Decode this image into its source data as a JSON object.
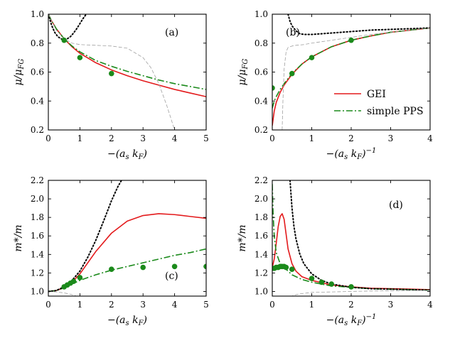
{
  "colors": {
    "gei": "#e31a1c",
    "pps": "#1b8a1b",
    "markers": "#1b8a1b",
    "dotted": "#000000",
    "thin": "#a0a0a0"
  },
  "legend": {
    "entries": [
      {
        "label": "GEI",
        "style": "solid",
        "color": "#e31a1c"
      },
      {
        "label": "simple PPS",
        "style": "dashdot",
        "color": "#1b8a1b"
      }
    ],
    "placement": "bottom-right of panel b"
  },
  "chart_data": [
    {
      "panel": "a",
      "panel_label": "(a)",
      "type": "line",
      "xlabel": "−(a_s k_F)",
      "ylabel": "μ/μ_FG",
      "xlim": [
        0,
        5
      ],
      "ylim": [
        0.2,
        1.0
      ],
      "xticks": [
        "0",
        "1",
        "2",
        "3",
        "4",
        "5"
      ],
      "yticks": [
        "0.2",
        "0.4",
        "0.6",
        "0.8",
        "1.0"
      ],
      "series": [
        {
          "role": "gei",
          "style": "solid",
          "x": [
            0,
            0.1,
            0.25,
            0.5,
            0.75,
            1.0,
            1.5,
            2.0,
            2.5,
            3.0,
            3.5,
            4.0,
            4.5,
            5.0
          ],
          "y": [
            1.0,
            0.955,
            0.9,
            0.83,
            0.775,
            0.73,
            0.665,
            0.615,
            0.575,
            0.54,
            0.51,
            0.48,
            0.455,
            0.43
          ]
        },
        {
          "role": "pps",
          "style": "dashdot",
          "x": [
            0,
            0.1,
            0.25,
            0.5,
            0.75,
            1.0,
            1.5,
            2.0,
            2.5,
            3.0,
            3.5,
            4.0,
            4.5,
            5.0
          ],
          "y": [
            1.0,
            0.955,
            0.9,
            0.83,
            0.78,
            0.74,
            0.68,
            0.64,
            0.605,
            0.575,
            0.545,
            0.52,
            0.5,
            0.48
          ]
        },
        {
          "role": "dotted",
          "style": "dotted",
          "x": [
            0,
            0.1,
            0.2,
            0.3,
            0.4,
            0.5,
            0.6,
            0.7,
            0.8,
            0.9,
            1.0,
            1.1,
            1.2,
            1.3,
            1.4
          ],
          "y": [
            1.0,
            0.925,
            0.875,
            0.845,
            0.83,
            0.825,
            0.83,
            0.845,
            0.87,
            0.9,
            0.935,
            0.97,
            1.0,
            1.02,
            1.04
          ]
        },
        {
          "role": "thin",
          "style": "dashed-thin",
          "x": [
            0,
            0.25,
            0.5,
            0.75,
            1.0,
            1.5,
            2.0,
            2.5,
            3.0,
            3.25,
            3.5,
            3.75,
            4.0,
            4.1
          ],
          "y": [
            1.0,
            0.89,
            0.83,
            0.8,
            0.79,
            0.785,
            0.78,
            0.765,
            0.7,
            0.63,
            0.52,
            0.37,
            0.2,
            0.14
          ]
        },
        {
          "role": "markers",
          "style": "points",
          "x": [
            0.5,
            1.0,
            2.0
          ],
          "y": [
            0.82,
            0.7,
            0.59
          ]
        }
      ]
    },
    {
      "panel": "b",
      "panel_label": "(b)",
      "type": "line",
      "xlabel": "−(a_s k_F)⁻¹",
      "ylabel": "μ/μ_FG",
      "xlim": [
        0,
        4
      ],
      "ylim": [
        0.2,
        1.0
      ],
      "xticks": [
        "0",
        "1",
        "2",
        "3",
        "4"
      ],
      "yticks": [
        "0.2",
        "0.4",
        "0.6",
        "0.8",
        "1.0"
      ],
      "series": [
        {
          "role": "gei",
          "style": "solid",
          "x": [
            0,
            0.05,
            0.1,
            0.2,
            0.3,
            0.5,
            0.75,
            1.0,
            1.5,
            2.0,
            2.5,
            3.0,
            3.5,
            4.0
          ],
          "y": [
            0.23,
            0.33,
            0.39,
            0.46,
            0.51,
            0.585,
            0.655,
            0.705,
            0.775,
            0.82,
            0.85,
            0.875,
            0.89,
            0.905
          ]
        },
        {
          "role": "pps",
          "style": "dashdot",
          "x": [
            0,
            0.05,
            0.1,
            0.2,
            0.3,
            0.5,
            0.75,
            1.0,
            1.5,
            2.0,
            2.5,
            3.0,
            3.5,
            4.0
          ],
          "y": [
            0.35,
            0.4,
            0.43,
            0.48,
            0.52,
            0.59,
            0.655,
            0.705,
            0.775,
            0.82,
            0.85,
            0.875,
            0.89,
            0.905
          ]
        },
        {
          "role": "dotted",
          "style": "dotted",
          "x": [
            0.4,
            0.45,
            0.5,
            0.6,
            0.7,
            0.8,
            1.0,
            1.25,
            1.5,
            2.0,
            2.5,
            3.0,
            3.5,
            4.0
          ],
          "y": [
            1.0,
            0.95,
            0.92,
            0.885,
            0.865,
            0.86,
            0.86,
            0.865,
            0.87,
            0.88,
            0.89,
            0.895,
            0.9,
            0.905
          ]
        },
        {
          "role": "thin",
          "style": "dashed-thin",
          "x": [
            0.25,
            0.27,
            0.3,
            0.35,
            0.4,
            0.5,
            0.6,
            0.8,
            1.0,
            1.5,
            2.0,
            2.5,
            3.0,
            3.5,
            4.0
          ],
          "y": [
            0.2,
            0.4,
            0.62,
            0.74,
            0.77,
            0.78,
            0.785,
            0.79,
            0.8,
            0.82,
            0.84,
            0.86,
            0.875,
            0.89,
            0.905
          ]
        },
        {
          "role": "markers",
          "style": "points",
          "x": [
            0,
            0.5,
            1.0,
            2.0
          ],
          "y": [
            0.49,
            0.59,
            0.7,
            0.82
          ]
        }
      ]
    },
    {
      "panel": "c",
      "panel_label": "(c)",
      "type": "line",
      "xlabel": "−(a_s k_F)",
      "ylabel": "m*/m",
      "xlim": [
        0,
        5
      ],
      "ylim": [
        0.95,
        2.2
      ],
      "xticks": [
        "0",
        "1",
        "2",
        "3",
        "4",
        "5"
      ],
      "yticks": [
        "1.0",
        "1.2",
        "1.4",
        "1.6",
        "1.8",
        "2.0",
        "2.2"
      ],
      "series": [
        {
          "role": "gei",
          "style": "solid",
          "x": [
            0,
            0.25,
            0.5,
            0.75,
            1.0,
            1.5,
            2.0,
            2.5,
            3.0,
            3.5,
            4.0,
            4.5,
            5.0
          ],
          "y": [
            1.0,
            1.01,
            1.04,
            1.1,
            1.19,
            1.43,
            1.63,
            1.76,
            1.82,
            1.84,
            1.83,
            1.81,
            1.79
          ]
        },
        {
          "role": "pps",
          "style": "dashdot",
          "x": [
            0,
            0.25,
            0.5,
            0.75,
            1.0,
            1.5,
            2.0,
            2.5,
            3.0,
            3.5,
            4.0,
            4.5,
            5.0
          ],
          "y": [
            1.0,
            1.01,
            1.04,
            1.08,
            1.12,
            1.18,
            1.23,
            1.27,
            1.31,
            1.35,
            1.39,
            1.42,
            1.46
          ]
        },
        {
          "role": "dotted",
          "style": "dotted",
          "x": [
            0,
            0.25,
            0.5,
            0.75,
            1.0,
            1.25,
            1.5,
            1.75,
            2.0,
            2.2,
            2.35
          ],
          "y": [
            1.0,
            1.01,
            1.05,
            1.12,
            1.22,
            1.37,
            1.55,
            1.76,
            1.98,
            2.13,
            2.22
          ]
        },
        {
          "role": "thin",
          "style": "dashed-thin",
          "x": [
            0,
            0.25,
            0.5,
            0.7,
            0.85,
            1.0,
            1.1
          ],
          "y": [
            1.0,
            0.995,
            0.985,
            0.97,
            0.955,
            0.93,
            0.9
          ]
        },
        {
          "role": "markers",
          "style": "points",
          "x": [
            0.5,
            0.6,
            0.7,
            0.8,
            1.0,
            2.0,
            3.0,
            4.0,
            5.0
          ],
          "y": [
            1.05,
            1.07,
            1.09,
            1.11,
            1.15,
            1.24,
            1.26,
            1.27,
            1.27
          ]
        }
      ]
    },
    {
      "panel": "d",
      "panel_label": "(d)",
      "type": "line",
      "xlabel": "−(a_s k_F)⁻¹",
      "ylabel": "m*/m",
      "xlim": [
        0,
        4
      ],
      "ylim": [
        0.95,
        2.2
      ],
      "xticks": [
        "0",
        "1",
        "2",
        "3",
        "4"
      ],
      "yticks": [
        "1.0",
        "1.2",
        "1.4",
        "1.6",
        "1.8",
        "2.0",
        "2.2"
      ],
      "series": [
        {
          "role": "gei",
          "style": "solid",
          "x": [
            0,
            0.05,
            0.1,
            0.15,
            0.2,
            0.25,
            0.3,
            0.35,
            0.4,
            0.5,
            0.6,
            0.75,
            1.0,
            1.5,
            2.0,
            2.5,
            3.0,
            3.5,
            4.0
          ],
          "y": [
            1.26,
            1.35,
            1.52,
            1.7,
            1.81,
            1.84,
            1.78,
            1.62,
            1.46,
            1.3,
            1.22,
            1.16,
            1.12,
            1.07,
            1.05,
            1.035,
            1.03,
            1.025,
            1.02
          ]
        },
        {
          "role": "pps",
          "style": "dashdot",
          "x": [
            0,
            0.02,
            0.05,
            0.1,
            0.2,
            0.3,
            0.4,
            0.5,
            0.75,
            1.0,
            1.5,
            2.0,
            2.5,
            3.0,
            3.5,
            4.0
          ],
          "y": [
            2.16,
            1.85,
            1.6,
            1.42,
            1.3,
            1.26,
            1.22,
            1.18,
            1.13,
            1.1,
            1.06,
            1.045,
            1.03,
            1.025,
            1.02,
            1.015
          ]
        },
        {
          "role": "dotted",
          "style": "dotted",
          "x": [
            0.45,
            0.5,
            0.55,
            0.6,
            0.7,
            0.8,
            1.0,
            1.25,
            1.5,
            2.0,
            2.5,
            3.0,
            3.5,
            4.0
          ],
          "y": [
            2.2,
            1.9,
            1.7,
            1.57,
            1.4,
            1.3,
            1.19,
            1.12,
            1.08,
            1.045,
            1.03,
            1.025,
            1.02,
            1.015
          ]
        },
        {
          "role": "thin",
          "style": "dashed-thin",
          "x": [
            0.35,
            0.45,
            0.55,
            0.7,
            0.9,
            1.0,
            1.5,
            2.0,
            2.5,
            3.0,
            3.5,
            4.0
          ],
          "y": [
            0.9,
            0.94,
            0.96,
            0.975,
            0.985,
            0.99,
            0.995,
            1.0,
            1.005,
            1.008,
            1.01,
            1.012
          ]
        },
        {
          "role": "markers",
          "style": "points",
          "x": [
            0,
            0.05,
            0.1,
            0.15,
            0.2,
            0.25,
            0.3,
            0.35,
            0.5,
            1.0,
            1.25,
            1.5,
            2.0
          ],
          "y": [
            1.25,
            1.25,
            1.26,
            1.26,
            1.27,
            1.27,
            1.27,
            1.26,
            1.24,
            1.14,
            1.1,
            1.08,
            1.05
          ]
        }
      ]
    }
  ]
}
